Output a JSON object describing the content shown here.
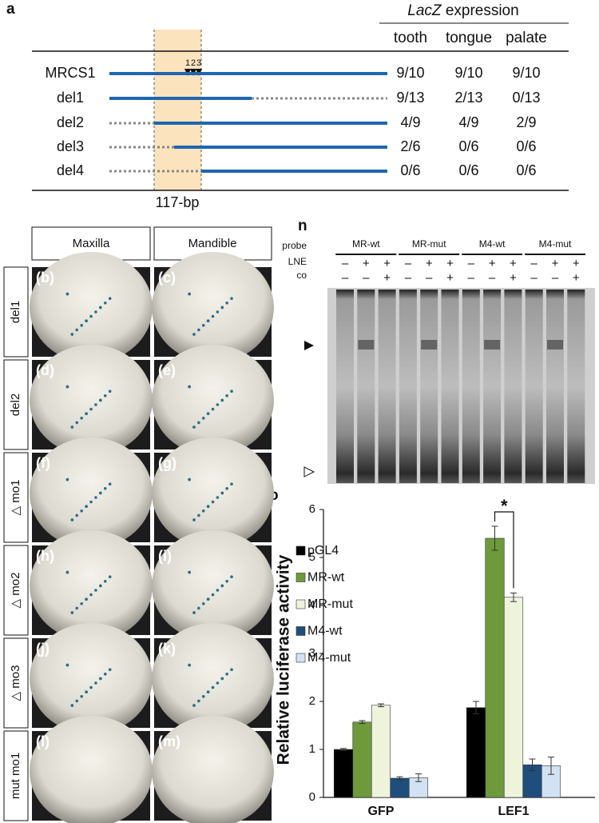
{
  "panel_a": {
    "label": "a",
    "header_italic": "LacZ",
    "header": "expression",
    "columns": [
      "tooth",
      "tongue",
      "palate"
    ],
    "constructs": [
      {
        "name": "MRCS1",
        "values": [
          "9/10",
          "9/10",
          "9/10"
        ]
      },
      {
        "name": "del1",
        "values": [
          "9/13",
          "2/13",
          "0/13"
        ]
      },
      {
        "name": "del2",
        "values": [
          "4/9",
          "4/9",
          "2/9"
        ]
      },
      {
        "name": "del3",
        "values": [
          "2/6",
          "0/6",
          "0/6"
        ]
      },
      {
        "name": "del4",
        "values": [
          "0/6",
          "0/6",
          "0/6"
        ]
      }
    ],
    "site_labels": [
      "1",
      "2",
      "3"
    ],
    "region_label": "117-bp"
  },
  "panels_bm": {
    "column_headers": [
      "Maxilla",
      "Mandible"
    ],
    "rows": [
      {
        "label": "del1",
        "left": "(b)",
        "right": "(c)"
      },
      {
        "label": "del2",
        "left": "(d)",
        "right": "(e)"
      },
      {
        "label": "△ mo1",
        "left": "(f)",
        "right": "(g)"
      },
      {
        "label": "△ mo2",
        "left": "(h)",
        "right": "(i)"
      },
      {
        "label": "△ mo3",
        "left": "(j)",
        "right": "(k)"
      },
      {
        "label": "mut mo1",
        "left": "(l)",
        "right": "(m)"
      }
    ]
  },
  "panel_n": {
    "label": "n",
    "row_labels": [
      "probe",
      "LNE",
      "co"
    ],
    "probes": [
      "MR-wt",
      "MR-mut",
      "M4-wt",
      "M4-mut"
    ],
    "lne": [
      "–",
      "+",
      "+",
      "–",
      "+",
      "+",
      "–",
      "+",
      "+",
      "–",
      "+",
      "+"
    ],
    "co": [
      "–",
      "–",
      "+",
      "–",
      "–",
      "+",
      "–",
      "–",
      "+",
      "–",
      "–",
      "+"
    ]
  },
  "chart_data": {
    "type": "bar",
    "label": "o",
    "ylabel": "Relative luciferase activity",
    "categories": [
      "GFP",
      "LEF1"
    ],
    "series": [
      {
        "name": "pGL4",
        "color": "#000000",
        "values": [
          1.0,
          1.87
        ],
        "errors": [
          0.02,
          0.13
        ]
      },
      {
        "name": "MR-wt",
        "color": "#6e9a3b",
        "values": [
          1.57,
          5.4
        ],
        "errors": [
          0.03,
          0.25
        ]
      },
      {
        "name": "MR-mut",
        "color": "#eef3dc",
        "values": [
          1.92,
          4.17
        ],
        "errors": [
          0.03,
          0.09
        ]
      },
      {
        "name": "M4-wt",
        "color": "#1f4d7c",
        "values": [
          0.4,
          0.68
        ],
        "errors": [
          0.03,
          0.12
        ]
      },
      {
        "name": "M4-mut",
        "color": "#d2e2f2",
        "values": [
          0.41,
          0.66
        ],
        "errors": [
          0.08,
          0.18
        ]
      }
    ],
    "ylim": [
      0,
      6
    ],
    "yticks": [
      0,
      1,
      2,
      3,
      4,
      5,
      6
    ],
    "annotation": "*"
  }
}
